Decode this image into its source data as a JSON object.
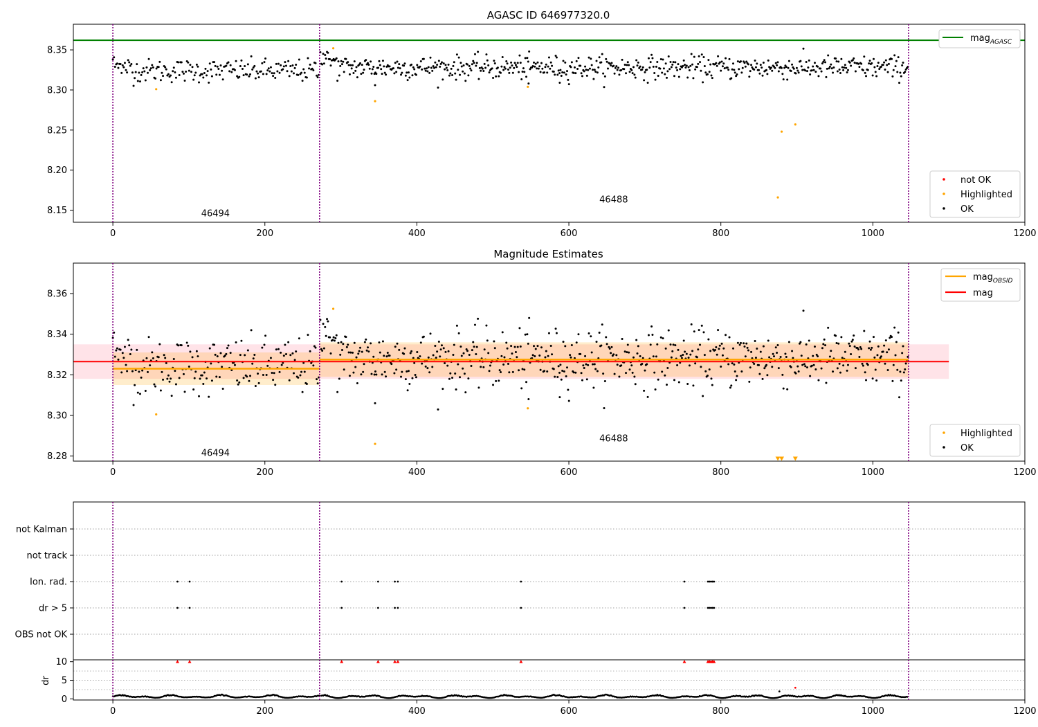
{
  "figure": {
    "panel1_title": "AGASC ID 646977320.0",
    "panel2_title": "Magnitude Estimates"
  },
  "colors": {
    "ok": "#000000",
    "highlighted": "#ffa500",
    "not_ok": "#ff0000",
    "agasc_line": "#008000",
    "obsid_line": "#ffa500",
    "mag_line": "#ff0000",
    "obs_boundary": "#800080"
  },
  "chart_data": [
    {
      "type": "scatter",
      "title": "AGASC ID 646977320.0",
      "xlim": [
        -52,
        1200
      ],
      "ylim": [
        8.135,
        8.382
      ],
      "xticks": [
        0,
        200,
        400,
        600,
        800,
        1000,
        1200
      ],
      "yticks": [
        8.15,
        8.2,
        8.25,
        8.3,
        8.35
      ],
      "ytick_labels": [
        "8.15",
        "8.20",
        "8.25",
        "8.30",
        "8.35"
      ],
      "obs_boundaries": [
        0,
        272,
        1047
      ],
      "obsid_labels": [
        {
          "text": "46494",
          "x": 135,
          "y": 8.146
        },
        {
          "text": "46488",
          "x": 659,
          "y": 8.163
        }
      ],
      "mag_agasc": 8.362,
      "ok_points": {
        "segments": [
          {
            "x": [
              0,
              271
            ],
            "n": 190,
            "mean": 8.324,
            "sd": 0.0072,
            "start": 8.328
          },
          {
            "x": [
              273,
              1046
            ],
            "n": 620,
            "mean": 8.328,
            "sd": 0.0072,
            "start": 8.338
          }
        ],
        "outliers": [
          {
            "x": 345,
            "y": 8.306
          },
          {
            "x": 547,
            "y": 8.308
          },
          {
            "x": 588,
            "y": 8.309
          }
        ]
      },
      "highlighted_points": [
        {
          "x": 57,
          "y": 8.301
        },
        {
          "x": 290,
          "y": 8.352
        },
        {
          "x": 345,
          "y": 8.286
        },
        {
          "x": 546,
          "y": 8.304
        },
        {
          "x": 875,
          "y": 8.166
        },
        {
          "x": 880,
          "y": 8.248
        },
        {
          "x": 898,
          "y": 8.257
        }
      ],
      "legend_top": {
        "label": "mag",
        "sub": "AGASC",
        "position": "upper right"
      },
      "legend_bottom": {
        "items": [
          "not OK",
          "Highlighted",
          "OK"
        ],
        "position": "lower right"
      }
    },
    {
      "type": "scatter",
      "title": "Magnitude Estimates",
      "xlim": [
        -52,
        1200
      ],
      "ylim": [
        8.2775,
        8.375
      ],
      "xticks": [
        0,
        200,
        400,
        600,
        800,
        1000,
        1200
      ],
      "yticks": [
        8.28,
        8.3,
        8.32,
        8.34,
        8.36
      ],
      "ytick_labels": [
        "8.28",
        "8.30",
        "8.32",
        "8.34",
        "8.36"
      ],
      "obs_boundaries": [
        0,
        272,
        1047
      ],
      "obsid_labels": [
        {
          "text": "46494",
          "x": 135,
          "y": 8.2815
        },
        {
          "text": "46488",
          "x": 659,
          "y": 8.2885
        }
      ],
      "mag": 8.3265,
      "mag_band": [
        8.318,
        8.335
      ],
      "obsid_segments": [
        {
          "x0": 0,
          "x1": 272,
          "mag": 8.323,
          "band": [
            8.315,
            8.331
          ]
        },
        {
          "x0": 272,
          "x1": 1047,
          "mag": 8.3275,
          "band": [
            8.319,
            8.336
          ]
        }
      ],
      "highlighted_points": [
        {
          "x": 57,
          "y": 8.3005
        },
        {
          "x": 290,
          "y": 8.3525
        },
        {
          "x": 345,
          "y": 8.286
        },
        {
          "x": 546,
          "y": 8.3035
        }
      ],
      "below_limit_markers": [
        875,
        880,
        898
      ],
      "legend_top": {
        "items": [
          {
            "label": "mag",
            "sub": "OBSID"
          },
          {
            "label": "mag",
            "sub": ""
          }
        ],
        "position": "upper right"
      },
      "legend_bottom": {
        "items": [
          "Highlighted",
          "OK"
        ],
        "position": "lower right"
      }
    },
    {
      "type": "scatter",
      "title": "",
      "xlim": [
        -52,
        1200
      ],
      "xticks": [
        0,
        200,
        400,
        600,
        800,
        1000,
        1200
      ],
      "obs_boundaries": [
        0,
        272,
        1047
      ],
      "flag_categories": [
        "not Kalman",
        "not track",
        "Ion. rad.",
        "dr > 5",
        "OBS not OK"
      ],
      "flag_events": {
        "not Kalman": [],
        "not track": [],
        "Ion. rad.": [
          85,
          101,
          301,
          349,
          371,
          375,
          537,
          752,
          783,
          785,
          787,
          789,
          791
        ],
        "dr > 5": [
          85,
          101,
          301,
          349,
          371,
          375,
          537,
          752,
          783,
          785,
          787,
          789,
          791
        ],
        "OBS not OK": []
      }
    },
    {
      "type": "scatter",
      "title": "",
      "ylabel": "dr",
      "xlim": [
        -52,
        1200
      ],
      "ylim": [
        -0.3,
        10.5
      ],
      "xticks": [
        0,
        200,
        400,
        600,
        800,
        1000,
        1200
      ],
      "yticks": [
        0,
        5,
        10
      ],
      "obs_boundaries": [
        0,
        272,
        1047
      ],
      "clipped_points_at_10": [
        85,
        101,
        301,
        349,
        371,
        375,
        537,
        752,
        783,
        785,
        787,
        789,
        791
      ],
      "extra_points": [
        {
          "x": 877,
          "y": 2.0,
          "color": "#000000"
        },
        {
          "x": 898,
          "y": 3.0,
          "color": "#ff0000"
        }
      ],
      "typical_dr": [
        0.2,
        1.2
      ]
    }
  ]
}
